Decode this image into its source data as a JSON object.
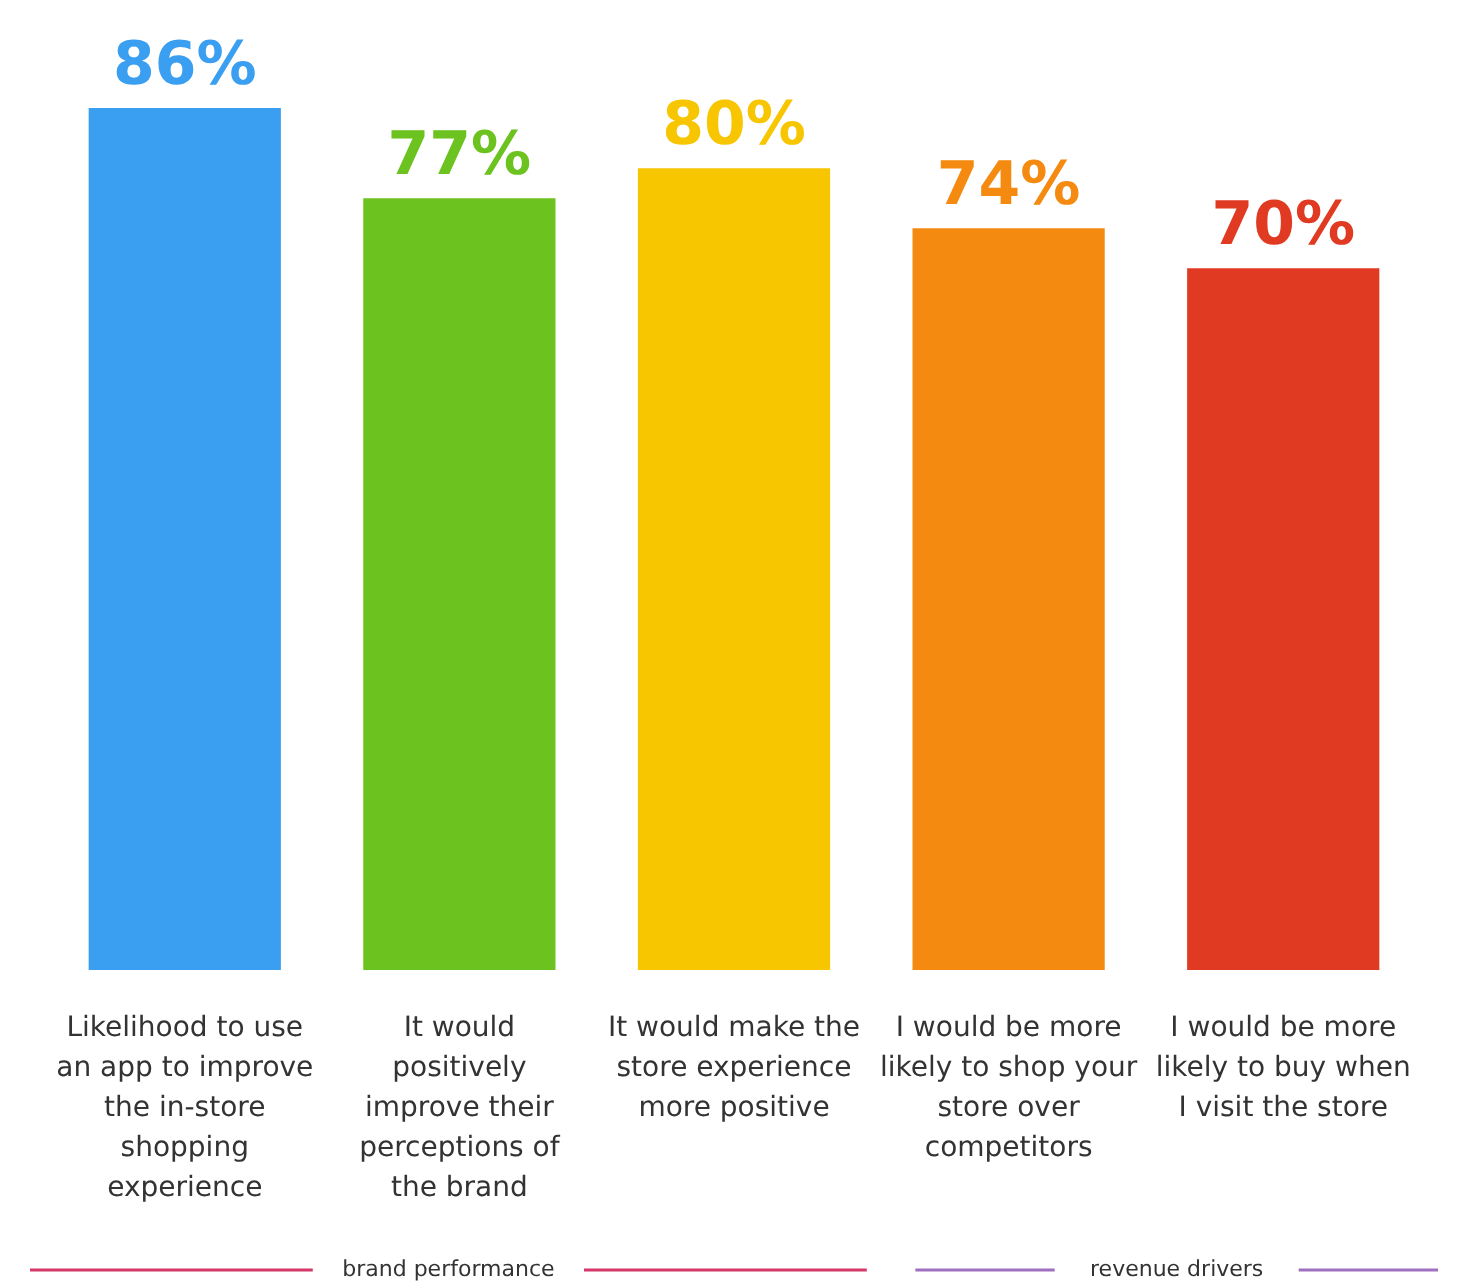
{
  "chart_data": {
    "type": "bar",
    "categories": [
      "Likelihood to use an app to improve the in-store shopping experience",
      "It would positively improve their perceptions of the brand",
      "It would make the store experience more positive",
      "I would be more likely to shop your store over competitors",
      "I would be more likely to buy when I visit the store"
    ],
    "values": [
      86,
      77,
      80,
      74,
      70
    ],
    "value_labels": [
      "86%",
      "77%",
      "80%",
      "74%",
      "70%"
    ],
    "colors": [
      "#3a9ff0",
      "#6cc21e",
      "#f7c600",
      "#f58a10",
      "#e03a22"
    ],
    "annotations": [
      "brand performance",
      "revenue drivers"
    ],
    "grid": false
  }
}
